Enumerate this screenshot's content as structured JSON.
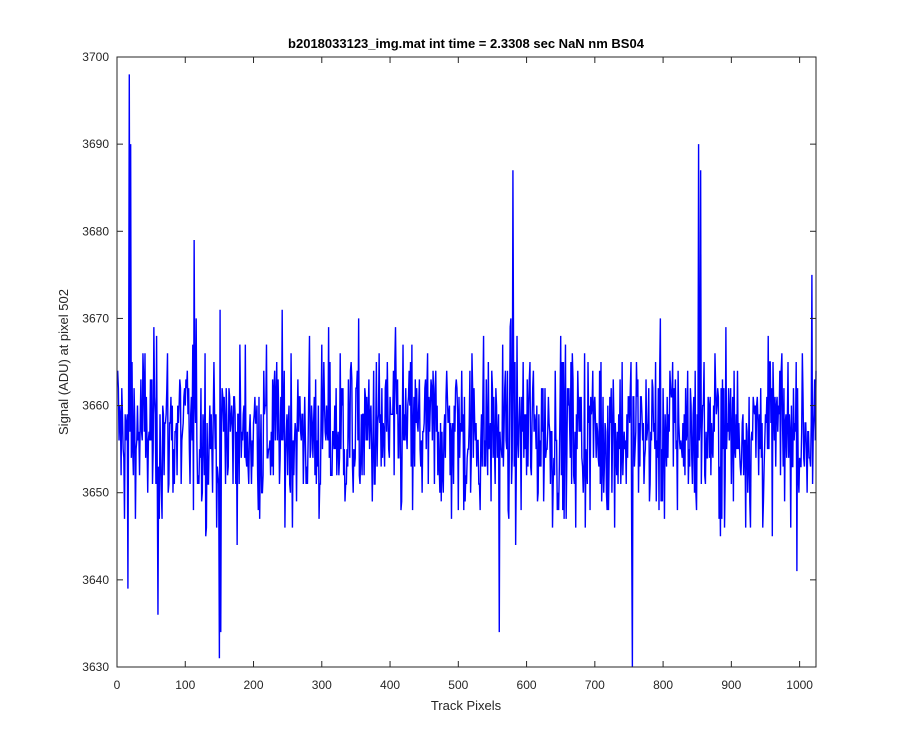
{
  "chart_data": {
    "type": "line",
    "title": "b2018033123_img.mat int time = 2.3308 sec  NaN nm BS04",
    "xlabel": "Track Pixels",
    "ylabel": "Signal (ADU) at pixel 502",
    "xlim": [
      0,
      1024
    ],
    "ylim": [
      3630,
      3700
    ],
    "xticks": [
      0,
      100,
      200,
      300,
      400,
      500,
      600,
      700,
      800,
      900,
      1000
    ],
    "yticks": [
      3630,
      3640,
      3650,
      3660,
      3670,
      3680,
      3690,
      3700
    ],
    "grid": false,
    "box": true,
    "line_color": "#0000ff",
    "series": [
      {
        "description": "noisy signal, one value per track pixel (1..1024), fluctuating about ~3657 ADU",
        "spikes": [
          {
            "x": 18,
            "y": 3698
          },
          {
            "x": 20,
            "y": 3690
          },
          {
            "x": 16,
            "y": 3639
          },
          {
            "x": 60,
            "y": 3636
          },
          {
            "x": 113,
            "y": 3679
          },
          {
            "x": 150,
            "y": 3631
          },
          {
            "x": 152,
            "y": 3634
          },
          {
            "x": 560,
            "y": 3634
          },
          {
            "x": 580,
            "y": 3687
          },
          {
            "x": 755,
            "y": 3630
          },
          {
            "x": 852,
            "y": 3690
          },
          {
            "x": 855,
            "y": 3687
          },
          {
            "x": 1018,
            "y": 3675
          }
        ],
        "baseline_mean": 3657,
        "baseline_spread": 7
      }
    ]
  }
}
